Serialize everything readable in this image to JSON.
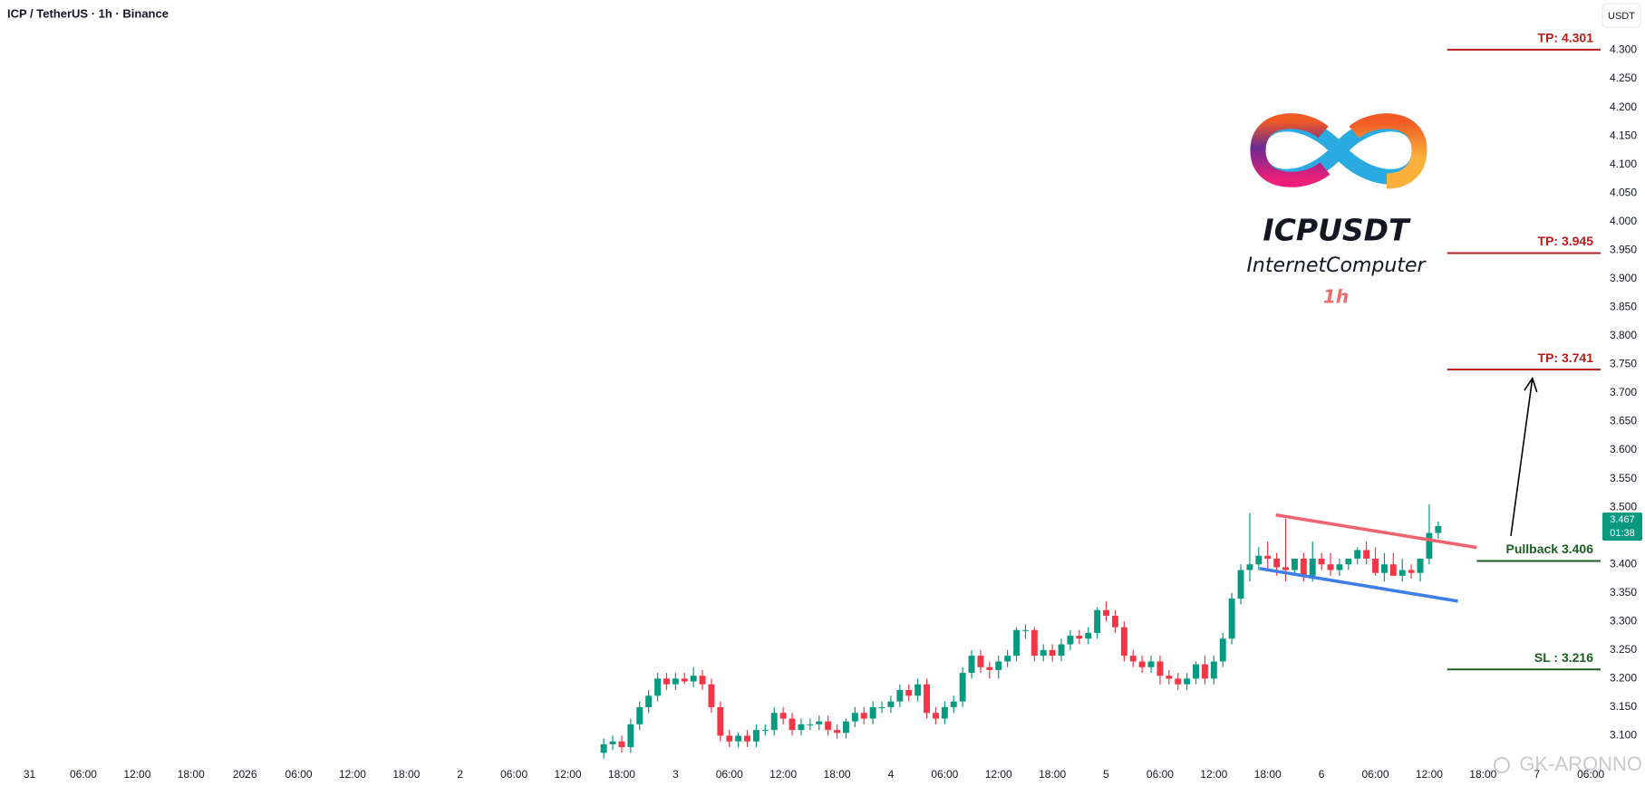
{
  "chart_data": {
    "type": "candlestick",
    "title": "ICP / TetherUS · 1h · Binance",
    "currency": "USDT",
    "x": [
      64,
      65,
      66,
      67,
      68,
      69,
      70,
      71,
      72,
      73,
      74,
      75,
      76,
      77,
      78,
      79,
      80,
      81,
      82,
      83,
      84,
      85,
      86,
      87,
      88,
      89,
      90,
      91,
      92,
      93,
      94,
      95,
      96,
      97,
      98,
      99,
      100,
      101,
      102,
      103,
      104,
      105,
      106,
      107,
      108,
      109,
      110,
      111,
      112,
      113,
      114,
      115,
      116,
      117,
      118,
      119,
      120,
      121,
      122,
      123,
      124,
      125,
      126,
      127,
      128,
      129,
      130,
      131,
      132,
      133,
      134,
      135,
      136,
      137,
      138,
      139,
      140,
      141,
      142,
      143,
      144,
      145,
      146,
      147,
      148,
      149,
      150,
      151,
      152,
      153,
      154,
      155,
      156,
      157
    ],
    "open": [
      3.07,
      3.085,
      3.09,
      3.08,
      3.12,
      3.15,
      3.17,
      3.2,
      3.19,
      3.2,
      3.195,
      3.205,
      3.19,
      3.15,
      3.1,
      3.09,
      3.1,
      3.09,
      3.11,
      3.11,
      3.14,
      3.13,
      3.11,
      3.12,
      3.12,
      3.125,
      3.11,
      3.105,
      3.125,
      3.14,
      3.13,
      3.15,
      3.15,
      3.16,
      3.18,
      3.17,
      3.19,
      3.14,
      3.13,
      3.15,
      3.16,
      3.21,
      3.24,
      3.22,
      3.215,
      3.23,
      3.24,
      3.285,
      3.285,
      3.24,
      3.25,
      3.24,
      3.26,
      3.275,
      3.27,
      3.28,
      3.32,
      3.31,
      3.29,
      3.24,
      3.23,
      3.22,
      3.23,
      3.205,
      3.2,
      3.19,
      3.2,
      3.225,
      3.2,
      3.23,
      3.27,
      3.34,
      3.39,
      3.4,
      3.415,
      3.41,
      3.395,
      3.39,
      3.41,
      3.38,
      3.41,
      3.4,
      3.39,
      3.4,
      3.41,
      3.425,
      3.41,
      3.385,
      3.4,
      3.38,
      3.39,
      3.385,
      3.41,
      3.455
    ],
    "high": [
      3.095,
      3.1,
      3.1,
      3.13,
      3.16,
      3.18,
      3.21,
      3.21,
      3.21,
      3.21,
      3.22,
      3.215,
      3.2,
      3.16,
      3.11,
      3.105,
      3.11,
      3.12,
      3.12,
      3.15,
      3.15,
      3.14,
      3.13,
      3.13,
      3.135,
      3.135,
      3.12,
      3.13,
      3.15,
      3.15,
      3.16,
      3.16,
      3.17,
      3.19,
      3.19,
      3.2,
      3.2,
      3.15,
      3.16,
      3.17,
      3.22,
      3.25,
      3.25,
      3.23,
      3.24,
      3.25,
      3.29,
      3.295,
      3.29,
      3.26,
      3.26,
      3.27,
      3.285,
      3.285,
      3.29,
      3.325,
      3.335,
      3.32,
      3.3,
      3.25,
      3.24,
      3.24,
      3.24,
      3.215,
      3.21,
      3.21,
      3.23,
      3.24,
      3.24,
      3.28,
      3.35,
      3.4,
      3.49,
      3.43,
      3.44,
      3.42,
      3.48,
      3.41,
      3.42,
      3.44,
      3.42,
      3.42,
      3.41,
      3.41,
      3.43,
      3.44,
      3.43,
      3.42,
      3.42,
      3.41,
      3.4,
      3.4,
      3.505,
      3.475
    ],
    "low": [
      3.06,
      3.075,
      3.07,
      3.07,
      3.11,
      3.14,
      3.16,
      3.18,
      3.18,
      3.19,
      3.185,
      3.18,
      3.14,
      3.09,
      3.08,
      3.08,
      3.08,
      3.08,
      3.1,
      3.1,
      3.12,
      3.1,
      3.1,
      3.11,
      3.11,
      3.1,
      3.095,
      3.095,
      3.115,
      3.12,
      3.12,
      3.14,
      3.14,
      3.15,
      3.16,
      3.16,
      3.13,
      3.12,
      3.12,
      3.14,
      3.15,
      3.2,
      3.21,
      3.2,
      3.2,
      3.22,
      3.23,
      3.27,
      3.23,
      3.23,
      3.23,
      3.23,
      3.25,
      3.26,
      3.26,
      3.27,
      3.3,
      3.28,
      3.23,
      3.22,
      3.21,
      3.21,
      3.19,
      3.19,
      3.18,
      3.18,
      3.19,
      3.19,
      3.19,
      3.22,
      3.26,
      3.33,
      3.37,
      3.39,
      3.39,
      3.38,
      3.37,
      3.38,
      3.37,
      3.37,
      3.39,
      3.38,
      3.38,
      3.39,
      3.4,
      3.4,
      3.38,
      3.37,
      3.38,
      3.37,
      3.375,
      3.37,
      3.4,
      3.445
    ],
    "close": [
      3.085,
      3.09,
      3.08,
      3.12,
      3.15,
      3.17,
      3.2,
      3.19,
      3.2,
      3.195,
      3.205,
      3.19,
      3.15,
      3.1,
      3.09,
      3.1,
      3.09,
      3.11,
      3.11,
      3.14,
      3.13,
      3.11,
      3.12,
      3.12,
      3.125,
      3.11,
      3.105,
      3.125,
      3.14,
      3.13,
      3.15,
      3.15,
      3.16,
      3.18,
      3.17,
      3.19,
      3.14,
      3.13,
      3.15,
      3.16,
      3.21,
      3.24,
      3.22,
      3.215,
      3.23,
      3.24,
      3.285,
      3.285,
      3.24,
      3.25,
      3.24,
      3.26,
      3.275,
      3.27,
      3.28,
      3.32,
      3.31,
      3.29,
      3.24,
      3.23,
      3.22,
      3.23,
      3.205,
      3.2,
      3.19,
      3.2,
      3.225,
      3.2,
      3.23,
      3.27,
      3.34,
      3.39,
      3.4,
      3.415,
      3.41,
      3.395,
      3.39,
      3.41,
      3.38,
      3.41,
      3.4,
      3.39,
      3.4,
      3.41,
      3.425,
      3.41,
      3.385,
      3.4,
      3.38,
      3.39,
      3.385,
      3.41,
      3.455,
      3.467
    ],
    "up_color": "#089981",
    "down_color": "#f23645",
    "xlim": [
      -3.29,
      175.1
    ],
    "xticks": [
      {
        "value": 0,
        "label": "31"
      },
      {
        "value": 6,
        "label": "06:00"
      },
      {
        "value": 12,
        "label": "12:00"
      },
      {
        "value": 18,
        "label": "18:00"
      },
      {
        "value": 24,
        "label": "2026"
      },
      {
        "value": 30,
        "label": "06:00"
      },
      {
        "value": 36,
        "label": "12:00"
      },
      {
        "value": 42,
        "label": "18:00"
      },
      {
        "value": 48,
        "label": "2"
      },
      {
        "value": 54,
        "label": "06:00"
      },
      {
        "value": 60,
        "label": "12:00"
      },
      {
        "value": 66,
        "label": "18:00"
      },
      {
        "value": 72,
        "label": "3"
      },
      {
        "value": 78,
        "label": "06:00"
      },
      {
        "value": 84,
        "label": "12:00"
      },
      {
        "value": 90,
        "label": "18:00"
      },
      {
        "value": 96,
        "label": "4"
      },
      {
        "value": 102,
        "label": "06:00"
      },
      {
        "value": 108,
        "label": "12:00"
      },
      {
        "value": 114,
        "label": "18:00"
      },
      {
        "value": 120,
        "label": "5"
      },
      {
        "value": 126,
        "label": "06:00"
      },
      {
        "value": 132,
        "label": "12:00"
      },
      {
        "value": 138,
        "label": "18:00"
      },
      {
        "value": 144,
        "label": "6"
      },
      {
        "value": 150,
        "label": "06:00"
      },
      {
        "value": 156,
        "label": "12:00"
      },
      {
        "value": 162,
        "label": "18:00"
      },
      {
        "value": 168,
        "label": "7"
      },
      {
        "value": 174,
        "label": "06:00"
      }
    ],
    "ylim": [
      3.05,
      4.388
    ],
    "yticks": [
      {
        "value": 3.1,
        "label": "3.100"
      },
      {
        "value": 3.15,
        "label": "3.150"
      },
      {
        "value": 3.2,
        "label": "3.200"
      },
      {
        "value": 3.25,
        "label": "3.250"
      },
      {
        "value": 3.3,
        "label": "3.300"
      },
      {
        "value": 3.35,
        "label": "3.350"
      },
      {
        "value": 3.4,
        "label": "3.400"
      },
      {
        "value": 3.45,
        "label": "3.450"
      },
      {
        "value": 3.5,
        "label": "3.500"
      },
      {
        "value": 3.55,
        "label": "3.550"
      },
      {
        "value": 3.6,
        "label": "3.600"
      },
      {
        "value": 3.65,
        "label": "3.650"
      },
      {
        "value": 3.7,
        "label": "3.700"
      },
      {
        "value": 3.75,
        "label": "3.750"
      },
      {
        "value": 3.8,
        "label": "3.800"
      },
      {
        "value": 3.85,
        "label": "3.850"
      },
      {
        "value": 3.9,
        "label": "3.900"
      },
      {
        "value": 3.95,
        "label": "3.950"
      },
      {
        "value": 4.0,
        "label": "4.000"
      },
      {
        "value": 4.05,
        "label": "4.050"
      },
      {
        "value": 4.1,
        "label": "4.100"
      },
      {
        "value": 4.15,
        "label": "4.150"
      },
      {
        "value": 4.2,
        "label": "4.200"
      },
      {
        "value": 4.25,
        "label": "4.250"
      },
      {
        "value": 4.3,
        "label": "4.300"
      }
    ],
    "grid": false,
    "last_price": 3.467,
    "countdown": "01:38",
    "levels": [
      {
        "label": "TP: 4.301",
        "value": 4.301,
        "from": 158,
        "color": "#b71c1c"
      },
      {
        "label": "TP: 3.945",
        "value": 3.945,
        "from": 158,
        "color": "#b71c1c"
      },
      {
        "label": "TP: 3.741",
        "value": 3.741,
        "from": 158,
        "color": "#b71c1c"
      },
      {
        "label": "Pullback 3.406",
        "value": 3.406,
        "from": 161.3,
        "color": "#1b5e20"
      },
      {
        "label": "SL : 3.216",
        "value": 3.216,
        "from": 158,
        "color": "#1b5e20"
      }
    ],
    "trendlines": [
      {
        "color": "#f0626e",
        "x": [
          138.9,
          161.3
        ],
        "y": [
          3.4865,
          3.4295
        ]
      },
      {
        "color": "#3d7de8",
        "x": [
          137.1,
          159.2
        ],
        "y": [
          3.3927,
          3.3356
        ]
      }
    ],
    "arrow": {
      "color": "#000000",
      "x": [
        165.1,
        167.5
      ],
      "y": [
        3.4497,
        3.7258
      ]
    }
  },
  "logo": {
    "symbol": "ICPUSDT",
    "name": "InternetComputer",
    "interval": "1h"
  },
  "watermark": "GK-ARONNO"
}
